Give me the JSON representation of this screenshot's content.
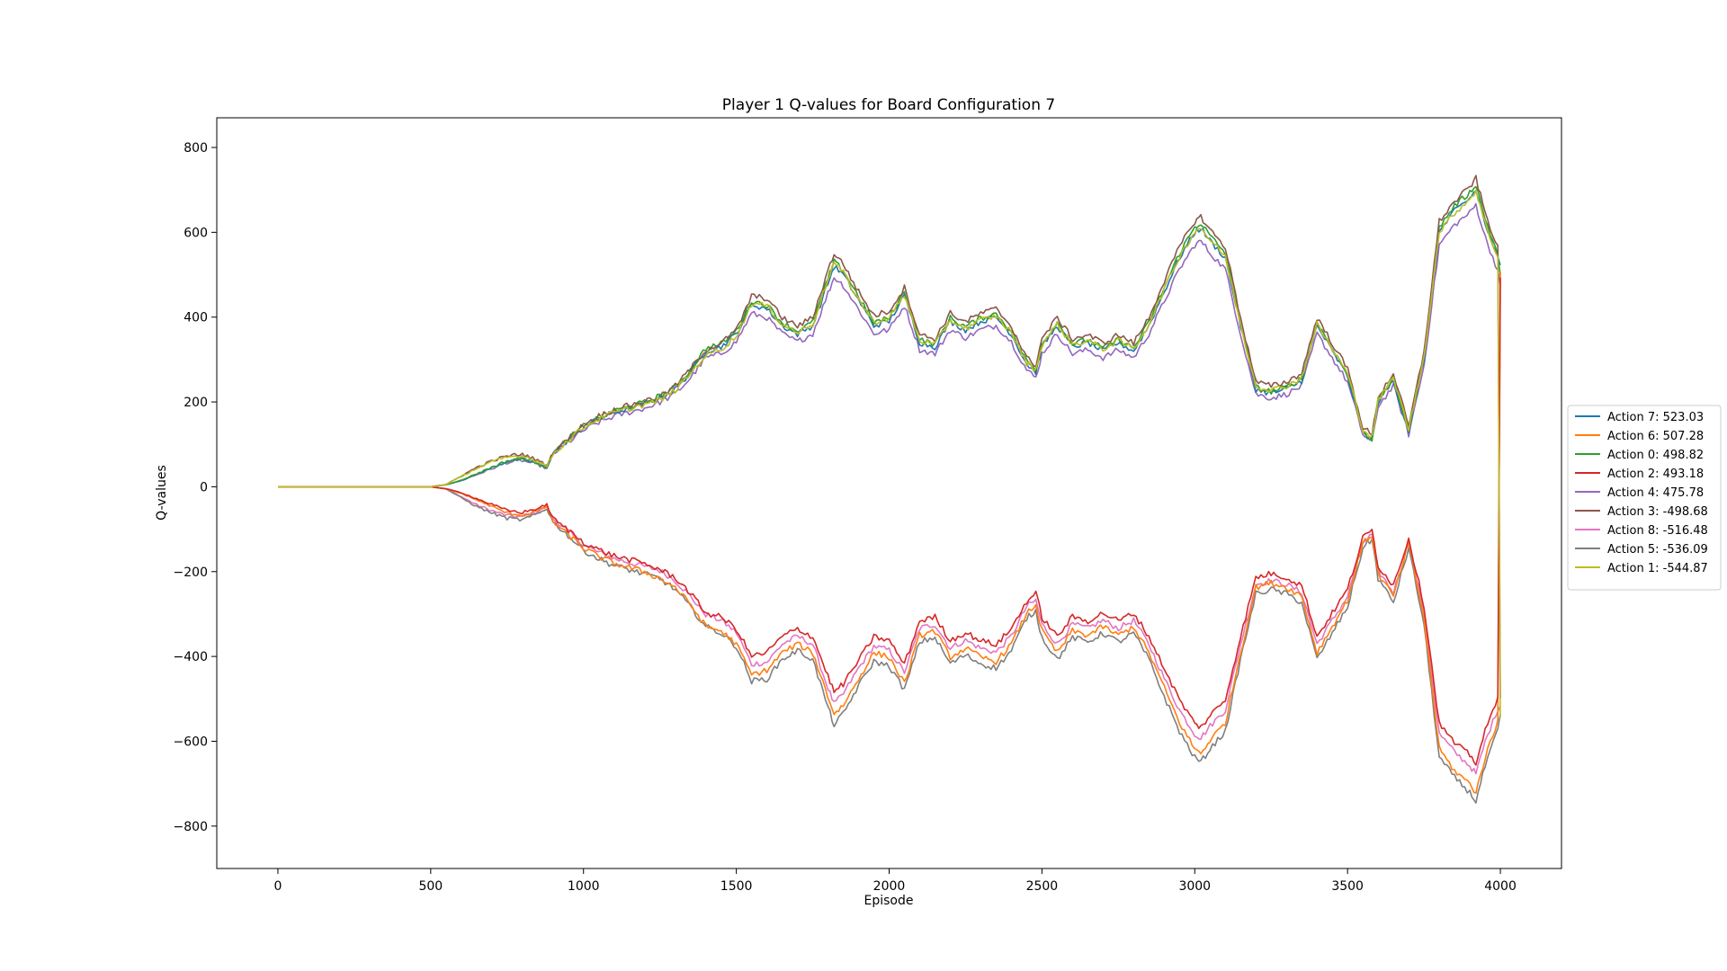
{
  "chart_data": {
    "type": "line",
    "title": "Player 1 Q-values for Board Configuration 7",
    "xlabel": "Episode",
    "ylabel": "Q-values",
    "xlim": [
      -200,
      4200
    ],
    "ylim": [
      -900,
      870
    ],
    "xticks": [
      0,
      500,
      1000,
      1500,
      2000,
      2500,
      3000,
      3500,
      4000
    ],
    "xtick_labels": [
      "0",
      "500",
      "1000",
      "1500",
      "2000",
      "2500",
      "3000",
      "3500",
      "4000"
    ],
    "yticks": [
      -800,
      -600,
      -400,
      -200,
      0,
      200,
      400,
      600,
      800
    ],
    "ytick_labels": [
      "−800",
      "−600",
      "−400",
      "−200",
      "0",
      "200",
      "400",
      "600",
      "800"
    ],
    "grid": false,
    "legend_position": "outside-right",
    "x": [
      0,
      500,
      550,
      600,
      650,
      700,
      750,
      800,
      850,
      880,
      900,
      950,
      1000,
      1050,
      1100,
      1150,
      1200,
      1250,
      1300,
      1350,
      1400,
      1450,
      1500,
      1550,
      1600,
      1650,
      1700,
      1750,
      1800,
      1820,
      1850,
      1900,
      1950,
      2000,
      2050,
      2100,
      2150,
      2200,
      2250,
      2300,
      2350,
      2400,
      2450,
      2480,
      2500,
      2550,
      2600,
      2650,
      2700,
      2750,
      2800,
      2850,
      2900,
      2950,
      3000,
      3020,
      3050,
      3100,
      3150,
      3200,
      3250,
      3300,
      3350,
      3400,
      3450,
      3500,
      3550,
      3580,
      3600,
      3650,
      3700,
      3750,
      3800,
      3850,
      3900,
      3920,
      3950,
      4000
    ],
    "upper_envelope": [
      0,
      0,
      5,
      15,
      30,
      45,
      60,
      65,
      55,
      45,
      80,
      110,
      140,
      160,
      175,
      185,
      195,
      210,
      230,
      270,
      320,
      330,
      360,
      430,
      420,
      380,
      360,
      380,
      480,
      520,
      500,
      440,
      380,
      390,
      450,
      340,
      330,
      390,
      370,
      390,
      400,
      360,
      290,
      270,
      330,
      380,
      330,
      340,
      320,
      340,
      320,
      380,
      460,
      540,
      600,
      610,
      580,
      540,
      380,
      230,
      220,
      230,
      250,
      380,
      320,
      260,
      130,
      110,
      200,
      250,
      130,
      300,
      600,
      650,
      680,
      700,
      620,
      520
    ],
    "lower_envelope": [
      0,
      0,
      -5,
      -25,
      -45,
      -60,
      -72,
      -76,
      -62,
      -50,
      -80,
      -112,
      -145,
      -165,
      -180,
      -190,
      -200,
      -210,
      -235,
      -275,
      -320,
      -335,
      -365,
      -445,
      -440,
      -395,
      -375,
      -395,
      -505,
      -545,
      -520,
      -455,
      -400,
      -410,
      -465,
      -355,
      -345,
      -405,
      -385,
      -405,
      -415,
      -375,
      -300,
      -285,
      -345,
      -395,
      -345,
      -355,
      -335,
      -355,
      -335,
      -395,
      -480,
      -560,
      -620,
      -630,
      -600,
      -560,
      -395,
      -245,
      -235,
      -245,
      -265,
      -395,
      -335,
      -275,
      -140,
      -120,
      -210,
      -265,
      -140,
      -315,
      -620,
      -665,
      -700,
      -720,
      -640,
      -540
    ],
    "series": [
      {
        "name": "Action 7: 523.03",
        "color": "#1f77b4",
        "final": 523.03,
        "offset": 1.0
      },
      {
        "name": "Action 6: 507.28",
        "color": "#ff7f0e",
        "final": 507.28,
        "offset": -1.03
      },
      {
        "name": "Action 0: 498.82",
        "color": "#2ca02c",
        "final": 498.82,
        "offset": 1.02
      },
      {
        "name": "Action 2: 493.18",
        "color": "#d62728",
        "final": 493.18,
        "offset": -0.93
      },
      {
        "name": "Action 4: 475.78",
        "color": "#9467bd",
        "final": 475.78,
        "offset": 0.95
      },
      {
        "name": "Action 3: -498.68",
        "color": "#8c564b",
        "final": -498.68,
        "offset": -1.01
      },
      {
        "name": "Action 8: -516.48",
        "color": "#e377c2",
        "final": -516.48,
        "offset": 0.94
      },
      {
        "name": "Action 5: -536.09",
        "color": "#7f7f7f",
        "final": -536.09,
        "offset": 1.03
      },
      {
        "name": "Action 1: -544.87",
        "color": "#bcbd22",
        "final": -544.87,
        "offset": -0.97
      }
    ]
  }
}
